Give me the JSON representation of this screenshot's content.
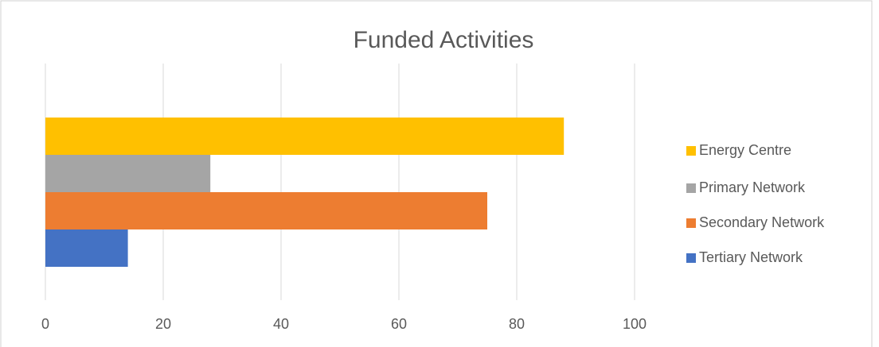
{
  "chart_data": {
    "type": "bar",
    "orientation": "horizontal",
    "title": "Funded Activities",
    "series": [
      {
        "name": "Energy Centre",
        "color": "#ffc000",
        "values": [
          88
        ]
      },
      {
        "name": "Primary Network",
        "color": "#a5a5a5",
        "values": [
          28
        ]
      },
      {
        "name": "Secondary Network",
        "color": "#ed7d31",
        "values": [
          75
        ]
      },
      {
        "name": "Tertiary Network",
        "color": "#4472c4",
        "values": [
          14
        ]
      }
    ],
    "xlim": [
      0,
      100
    ],
    "xticks": [
      0,
      20,
      40,
      60,
      80,
      100
    ],
    "grid": true,
    "legend": "right"
  }
}
